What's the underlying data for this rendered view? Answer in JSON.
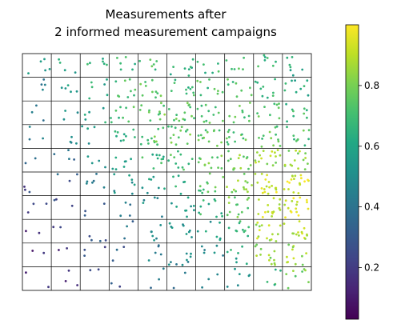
{
  "chart_data": {
    "type": "scatter",
    "title_lines": [
      "Measurements after",
      "2 informed measurement campaigns"
    ],
    "xlabel": "",
    "ylabel": "",
    "grid": {
      "on": true,
      "columns": 10,
      "rows": 10
    },
    "colorbar": {
      "colormap": "viridis",
      "range": [
        0.03,
        1.0
      ],
      "ticks": [
        0.2,
        0.4,
        0.6,
        0.8
      ],
      "tick_labels": [
        "0.2",
        "0.4",
        "0.6",
        "0.8"
      ],
      "placement": "right"
    },
    "point_density_per_cell": [
      [
        5,
        4,
        6,
        6,
        6,
        8,
        6,
        6,
        7,
        7
      ],
      [
        4,
        5,
        6,
        9,
        10,
        10,
        9,
        8,
        9,
        9
      ],
      [
        3,
        3,
        5,
        9,
        12,
        14,
        12,
        10,
        9,
        9
      ],
      [
        3,
        4,
        4,
        9,
        12,
        14,
        13,
        12,
        13,
        10
      ],
      [
        2,
        4,
        4,
        7,
        10,
        11,
        12,
        14,
        16,
        15
      ],
      [
        3,
        3,
        6,
        8,
        7,
        6,
        12,
        13,
        18,
        18
      ],
      [
        3,
        3,
        3,
        4,
        5,
        9,
        10,
        13,
        16,
        17
      ],
      [
        2,
        2,
        4,
        3,
        6,
        9,
        7,
        10,
        15,
        14
      ],
      [
        2,
        2,
        3,
        3,
        5,
        9,
        6,
        7,
        13,
        12
      ],
      [
        2,
        3,
        2,
        2,
        3,
        2,
        3,
        6,
        5,
        8
      ]
    ],
    "value_field": {
      "description_of_gradient": "values increase from low at left-bottom to high toward right; highest in lower-right columns",
      "cell_mean_values": [
        [
          0.55,
          0.6,
          0.65,
          0.7,
          0.72,
          0.66,
          0.66,
          0.7,
          0.66,
          0.6
        ],
        [
          0.45,
          0.55,
          0.62,
          0.7,
          0.76,
          0.7,
          0.7,
          0.72,
          0.7,
          0.62
        ],
        [
          0.4,
          0.5,
          0.6,
          0.7,
          0.78,
          0.74,
          0.72,
          0.72,
          0.72,
          0.68
        ],
        [
          0.4,
          0.45,
          0.55,
          0.66,
          0.76,
          0.76,
          0.74,
          0.74,
          0.74,
          0.72
        ],
        [
          0.32,
          0.4,
          0.5,
          0.58,
          0.68,
          0.72,
          0.76,
          0.8,
          0.86,
          0.84
        ],
        [
          0.25,
          0.32,
          0.45,
          0.52,
          0.55,
          0.62,
          0.74,
          0.82,
          0.92,
          0.94
        ],
        [
          0.2,
          0.25,
          0.34,
          0.45,
          0.5,
          0.55,
          0.66,
          0.78,
          0.92,
          0.94
        ],
        [
          0.18,
          0.2,
          0.3,
          0.38,
          0.48,
          0.52,
          0.56,
          0.7,
          0.88,
          0.9
        ],
        [
          0.15,
          0.18,
          0.25,
          0.32,
          0.44,
          0.48,
          0.5,
          0.62,
          0.82,
          0.85
        ],
        [
          0.12,
          0.15,
          0.2,
          0.28,
          0.38,
          0.42,
          0.45,
          0.55,
          0.7,
          0.78
        ]
      ]
    }
  }
}
